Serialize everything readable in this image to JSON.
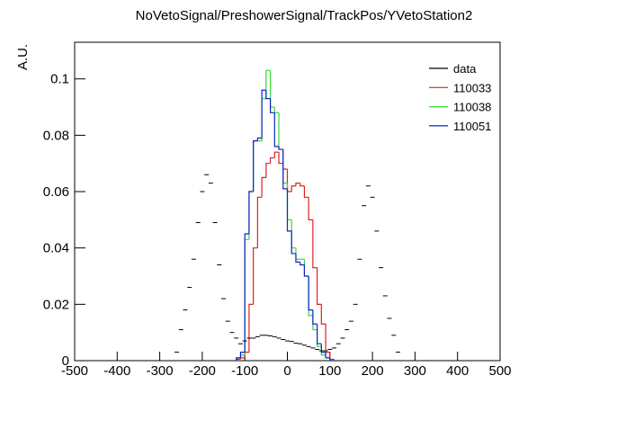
{
  "chart_data": {
    "type": "histogram",
    "title": "NoVetoSignal/PreshowerSignal/TrackPos/YVetoStation2",
    "y_label": "A.U.",
    "xlim": [
      -500,
      500
    ],
    "xticks": [
      -500,
      -400,
      -300,
      -200,
      -100,
      0,
      100,
      200,
      300,
      400,
      500
    ],
    "ylim": [
      0,
      0.113
    ],
    "yticks": [
      0,
      0.02,
      0.04,
      0.06,
      0.08,
      0.1
    ],
    "bins": [
      -120,
      -110,
      -100,
      -90,
      -80,
      -70,
      -60,
      -50,
      -40,
      -30,
      -20,
      -10,
      0,
      10,
      20,
      30,
      40,
      50,
      60,
      70,
      80,
      90,
      100,
      110
    ],
    "points": {
      "name": "data",
      "color": "#000000",
      "x": [
        -260,
        -250,
        -240,
        -230,
        -220,
        -210,
        -200,
        -190,
        -180,
        -170,
        -160,
        -150,
        -140,
        -130,
        -120,
        -110,
        -100,
        -90,
        -80,
        -70,
        -60,
        -50,
        -40,
        -30,
        -20,
        -10,
        0,
        10,
        20,
        30,
        40,
        50,
        60,
        70,
        80,
        90,
        100,
        110,
        120,
        130,
        140,
        150,
        160,
        170,
        180,
        190,
        200,
        210,
        220,
        230,
        240,
        250,
        260
      ],
      "values": [
        0.003,
        0.011,
        0.018,
        0.026,
        0.036,
        0.049,
        0.06,
        0.066,
        0.063,
        0.049,
        0.034,
        0.022,
        0.014,
        0.01,
        0.008,
        0.006,
        0.007,
        0.008,
        0.008,
        0.0085,
        0.009,
        0.009,
        0.0088,
        0.0085,
        0.008,
        0.0075,
        0.007,
        0.0068,
        0.0062,
        0.006,
        0.0055,
        0.005,
        0.0045,
        0.004,
        0.0035,
        0.0035,
        0.004,
        0.0045,
        0.006,
        0.008,
        0.011,
        0.014,
        0.02,
        0.036,
        0.055,
        0.062,
        0.058,
        0.046,
        0.033,
        0.023,
        0.015,
        0.009,
        0.003
      ]
    },
    "series": [
      {
        "name": "110033",
        "color": "#dd2222",
        "values": [
          0.0005,
          0.001,
          0.003,
          0.02,
          0.04,
          0.058,
          0.065,
          0.07,
          0.072,
          0.074,
          0.07,
          0.068,
          0.06,
          0.062,
          0.063,
          0.062,
          0.058,
          0.05,
          0.033,
          0.02,
          0.013,
          0.003,
          0.0005
        ]
      },
      {
        "name": "110038",
        "color": "#33dd33",
        "values": [
          0.001,
          0.002,
          0.043,
          0.06,
          0.078,
          0.078,
          0.093,
          0.103,
          0.09,
          0.088,
          0.075,
          0.063,
          0.05,
          0.04,
          0.036,
          0.036,
          0.03,
          0.016,
          0.011,
          0.005,
          0.002,
          0.001,
          0
        ]
      },
      {
        "name": "110051",
        "color": "#1122cc",
        "values": [
          0.001,
          0.003,
          0.045,
          0.06,
          0.078,
          0.079,
          0.096,
          0.093,
          0.088,
          0.076,
          0.075,
          0.061,
          0.046,
          0.038,
          0.035,
          0.034,
          0.03,
          0.018,
          0.013,
          0.006,
          0.003,
          0.001,
          0
        ]
      }
    ]
  }
}
